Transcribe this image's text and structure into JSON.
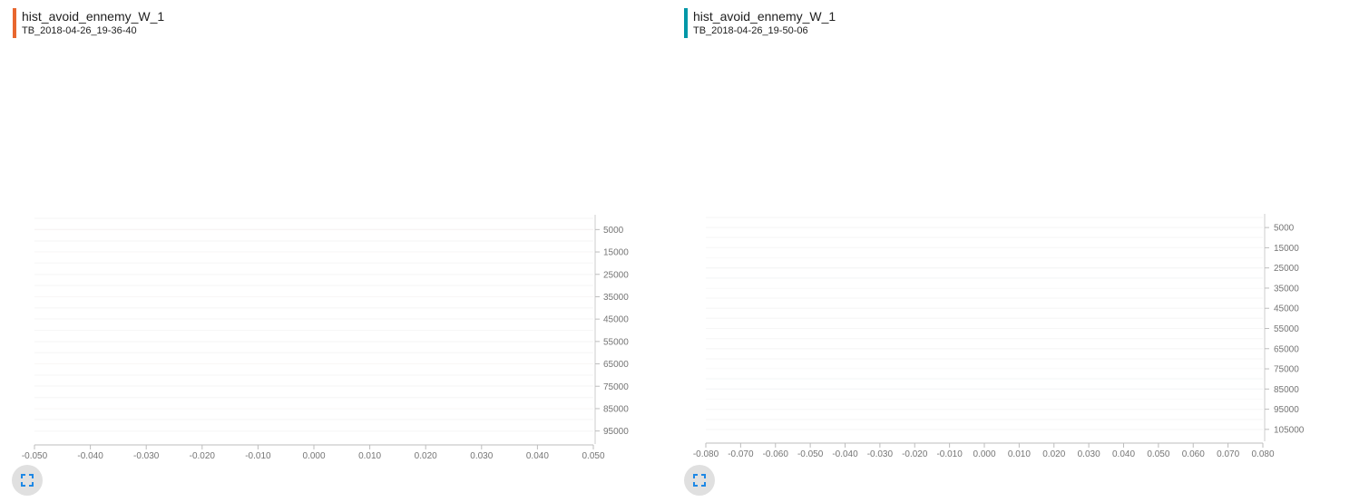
{
  "chart_data": [
    {
      "type": "area",
      "title": "hist_avoid_ennemy_W_1",
      "subtitle": "TB_2018-04-26_19-36-40",
      "accent_color": "#e8672f",
      "top_color": "#bf360c",
      "bottom_color": "#ffa26f",
      "x_ticks": [
        "-0.050",
        "-0.040",
        "-0.030",
        "-0.020",
        "-0.010",
        "0.000",
        "0.010",
        "0.020",
        "0.030",
        "0.040",
        "0.050"
      ],
      "xlim": [
        -0.05,
        0.05
      ],
      "step_labels": [
        "5000",
        "15000",
        "25000",
        "35000",
        "45000",
        "55000",
        "65000",
        "75000",
        "85000",
        "95000"
      ],
      "steplim": [
        0,
        100000
      ],
      "series": [
        {
          "step": 0,
          "range": [
            -0.05,
            0.05
          ],
          "values": [
            0.0,
            0.0,
            0.0,
            0.0,
            0.0,
            0.0,
            0.0,
            0.0,
            0.0,
            0.0,
            0.0
          ]
        },
        {
          "step": 5000,
          "range": [
            -0.05,
            0.05
          ],
          "values": [
            0.0,
            0.0,
            0.0,
            0.0,
            0.0,
            0.0,
            0.0,
            0.0,
            0.0,
            0.0,
            0.0
          ]
        },
        {
          "step": 10000,
          "range": [
            -0.05,
            0.05
          ],
          "values": [
            0.0,
            0.0,
            0.0,
            0.0,
            0.0,
            0.0,
            0.0,
            0.0,
            0.0,
            0.0,
            0.0
          ]
        },
        {
          "step": 15000,
          "range": [
            -0.05,
            0.05
          ],
          "values": [
            0.0,
            0.0,
            0.0,
            0.0,
            0.0,
            0.0,
            0.0,
            0.0,
            0.0,
            0.0,
            0.0
          ]
        },
        {
          "step": 20000,
          "range": [
            -0.05,
            0.05
          ],
          "values": [
            0.0,
            0.0,
            0.0,
            0.0,
            0.0,
            0.0,
            0.0,
            0.0,
            0.0,
            0.0,
            0.0
          ]
        },
        {
          "step": 25000,
          "range": [
            -0.05,
            0.05
          ],
          "values": [
            0.0,
            0.0,
            0.0,
            0.0,
            0.0,
            0.0,
            0.0,
            0.0,
            0.0,
            0.0,
            0.0
          ]
        },
        {
          "step": 30000,
          "range": [
            -0.05,
            0.05
          ],
          "values": [
            0.0,
            0.0,
            0.0,
            0.0,
            0.0,
            0.0,
            0.0,
            0.0,
            0.0,
            0.0,
            0.0
          ]
        },
        {
          "step": 35000,
          "range": [
            -0.05,
            0.05
          ],
          "values": [
            0.0,
            0.0,
            0.0,
            0.0,
            0.0,
            0.0,
            0.0,
            0.0,
            0.0,
            0.0,
            0.0
          ]
        },
        {
          "step": 40000,
          "range": [
            -0.05,
            0.05
          ],
          "values": [
            0.0,
            0.0,
            0.0,
            0.0,
            0.0,
            0.0,
            0.0,
            0.0,
            0.0,
            0.0,
            0.0
          ]
        },
        {
          "step": 45000,
          "range": [
            -0.05,
            0.05
          ],
          "values": [
            0.0,
            0.0,
            0.0,
            0.0,
            0.0,
            0.0,
            0.0,
            0.0,
            0.0,
            0.0,
            0.0
          ]
        },
        {
          "step": 50000,
          "range": [
            -0.05,
            0.05
          ],
          "values": [
            0.0,
            0.0,
            0.0,
            0.0,
            0.0,
            0.0,
            0.0,
            0.0,
            0.0,
            0.0,
            0.0
          ]
        },
        {
          "step": 55000,
          "range": [
            -0.05,
            0.05
          ],
          "values": [
            0.0,
            0.0,
            0.0,
            0.0,
            0.0,
            0.0,
            0.0,
            0.0,
            0.0,
            0.0,
            0.0
          ]
        },
        {
          "step": 60000,
          "range": [
            -0.05,
            0.05
          ],
          "values": [
            0.0,
            0.0,
            0.0,
            0.0,
            0.0,
            0.0,
            0.0,
            0.0,
            0.0,
            0.0,
            0.0
          ]
        },
        {
          "step": 65000,
          "range": [
            -0.05,
            0.05
          ],
          "values": [
            0.0,
            0.0,
            0.0,
            0.0,
            0.0,
            0.0,
            0.0,
            0.0,
            0.0,
            0.0,
            0.0
          ]
        },
        {
          "step": 70000,
          "range": [
            -0.05,
            0.05
          ],
          "values": [
            0.0,
            0.0,
            0.0,
            0.0,
            0.0,
            0.0,
            0.0,
            0.0,
            0.0,
            0.0,
            0.0
          ]
        },
        {
          "step": 75000,
          "range": [
            -0.05,
            0.05
          ],
          "values": [
            0.0,
            0.0,
            0.0,
            0.0,
            0.0,
            0.0,
            0.0,
            0.0,
            0.0,
            0.0,
            0.0
          ]
        },
        {
          "step": 80000,
          "range": [
            -0.05,
            0.05
          ],
          "values": [
            0.0,
            0.0,
            0.0,
            0.0,
            0.0,
            0.0,
            0.0,
            0.0,
            0.0,
            0.0,
            0.0
          ]
        },
        {
          "step": 85000,
          "range": [
            -0.05,
            0.05
          ],
          "values": [
            0.0,
            0.0,
            0.0,
            0.0,
            0.0,
            0.0,
            0.0,
            0.0,
            0.0,
            0.0,
            0.0
          ]
        },
        {
          "step": 90000,
          "range": [
            -0.05,
            0.05
          ],
          "values": [
            0.0,
            0.0,
            0.0,
            0.0,
            0.0,
            0.0,
            0.0,
            0.0,
            0.0,
            0.0,
            0.0
          ]
        },
        {
          "step": 95000,
          "range": [
            -0.05,
            0.05
          ],
          "values": [
            0.0,
            0.0,
            0.0,
            0.0,
            0.0,
            0.0,
            0.0,
            0.0,
            0.0,
            0.0,
            0.0
          ]
        }
      ]
    },
    {
      "type": "area",
      "title": "hist_avoid_ennemy_W_1",
      "subtitle": "TB_2018-04-26_19-50-06",
      "accent_color": "#0097a7",
      "top_color": "#006f80",
      "bottom_color": "#5ee0f5",
      "x_ticks": [
        "-0.080",
        "-0.070",
        "-0.060",
        "-0.050",
        "-0.040",
        "-0.030",
        "-0.020",
        "-0.010",
        "0.000",
        "0.010",
        "0.020",
        "0.030",
        "0.040",
        "0.050",
        "0.060",
        "0.070",
        "0.080"
      ],
      "xlim": [
        -0.08,
        0.08
      ],
      "step_labels": [
        "5000",
        "15000",
        "25000",
        "35000",
        "45000",
        "55000",
        "65000",
        "75000",
        "85000",
        "95000",
        "105000"
      ],
      "steplim": [
        0,
        110000
      ],
      "series": [
        {
          "step": 0,
          "range": [
            -0.08,
            0.08
          ],
          "values": [
            0.0,
            0.0,
            0.0,
            0.0,
            0.0,
            0.0,
            0.0,
            0.0,
            0.0,
            0.0,
            0.0
          ]
        },
        {
          "step": 5000,
          "range": [
            -0.08,
            0.08
          ],
          "values": [
            0.0,
            0.0,
            0.0,
            0.0,
            0.0,
            0.0,
            0.0,
            0.0,
            0.0,
            0.0,
            0.0
          ]
        },
        {
          "step": 10000,
          "range": [
            -0.08,
            0.08
          ],
          "values": [
            0.0,
            0.0,
            0.0,
            0.0,
            0.0,
            0.0,
            0.0,
            0.0,
            0.0,
            0.0,
            0.0
          ]
        },
        {
          "step": 15000,
          "range": [
            -0.08,
            0.08
          ],
          "values": [
            0.0,
            0.0,
            0.0,
            0.0,
            0.0,
            0.0,
            0.0,
            0.0,
            0.0,
            0.0,
            0.0
          ]
        },
        {
          "step": 20000,
          "range": [
            -0.08,
            0.08
          ],
          "values": [
            0.0,
            0.0,
            0.0,
            0.0,
            0.0,
            0.0,
            0.0,
            0.0,
            0.0,
            0.0,
            0.0
          ]
        },
        {
          "step": 25000,
          "range": [
            -0.08,
            0.08
          ],
          "values": [
            0.0,
            0.0,
            0.0,
            0.0,
            0.0,
            0.0,
            0.0,
            0.0,
            0.0,
            0.0,
            0.0
          ]
        },
        {
          "step": 30000,
          "range": [
            -0.08,
            0.08
          ],
          "values": [
            0.0,
            0.0,
            0.0,
            0.0,
            0.0,
            0.0,
            0.0,
            0.0,
            0.0,
            0.0,
            0.0
          ]
        },
        {
          "step": 35000,
          "range": [
            -0.08,
            0.08
          ],
          "values": [
            0.0,
            0.0,
            0.0,
            0.0,
            0.0,
            0.0,
            0.0,
            0.0,
            0.0,
            0.0,
            0.0
          ]
        },
        {
          "step": 40000,
          "range": [
            -0.08,
            0.08
          ],
          "values": [
            0.0,
            0.0,
            0.0,
            0.0,
            0.0,
            0.0,
            0.0,
            0.0,
            0.0,
            0.0,
            0.0
          ]
        },
        {
          "step": 45000,
          "range": [
            -0.08,
            0.08
          ],
          "values": [
            0.0,
            0.0,
            0.0,
            0.0,
            0.0,
            0.0,
            0.0,
            0.0,
            0.0,
            0.0,
            0.0
          ]
        },
        {
          "step": 50000,
          "range": [
            -0.08,
            0.08
          ],
          "values": [
            0.0,
            0.0,
            0.0,
            0.0,
            0.0,
            0.0,
            0.0,
            0.0,
            0.0,
            0.0,
            0.0
          ]
        },
        {
          "step": 55000,
          "range": [
            -0.08,
            0.08
          ],
          "values": [
            0.0,
            0.0,
            0.0,
            0.0,
            0.0,
            0.0,
            0.0,
            0.0,
            0.0,
            0.0,
            0.0
          ]
        },
        {
          "step": 60000,
          "range": [
            -0.08,
            0.08
          ],
          "values": [
            0.0,
            0.0,
            0.0,
            0.0,
            0.0,
            0.0,
            0.0,
            0.0,
            0.0,
            0.0,
            0.0
          ]
        },
        {
          "step": 65000,
          "range": [
            -0.08,
            0.08
          ],
          "values": [
            0.0,
            0.0,
            0.0,
            0.0,
            0.0,
            0.0,
            0.0,
            0.0,
            0.0,
            0.0,
            0.0
          ]
        },
        {
          "step": 70000,
          "range": [
            -0.08,
            0.08
          ],
          "values": [
            0.0,
            0.0,
            0.0,
            0.0,
            0.0,
            0.0,
            0.0,
            0.0,
            0.0,
            0.0,
            0.0
          ]
        },
        {
          "step": 75000,
          "range": [
            -0.08,
            0.08
          ],
          "values": [
            0.0,
            0.0,
            0.0,
            0.0,
            0.0,
            0.0,
            0.0,
            0.0,
            0.0,
            0.0,
            0.0
          ]
        },
        {
          "step": 80000,
          "range": [
            -0.08,
            0.08
          ],
          "values": [
            0.0,
            0.0,
            0.0,
            0.0,
            0.0,
            0.0,
            0.0,
            0.0,
            0.0,
            0.0,
            0.0
          ]
        },
        {
          "step": 85000,
          "range": [
            -0.08,
            0.08
          ],
          "values": [
            0.0,
            0.0,
            0.0,
            0.0,
            0.0,
            0.0,
            0.0,
            0.0,
            0.0,
            0.0,
            0.0
          ]
        },
        {
          "step": 90000,
          "range": [
            -0.08,
            0.08
          ],
          "values": [
            0.0,
            0.0,
            0.0,
            0.0,
            0.0,
            0.0,
            0.0,
            0.0,
            0.0,
            0.0,
            0.0
          ]
        },
        {
          "step": 95000,
          "range": [
            -0.08,
            0.08
          ],
          "values": [
            0.0,
            0.0,
            0.0,
            0.0,
            0.0,
            0.0,
            0.0,
            0.0,
            0.0,
            0.0,
            0.0
          ]
        },
        {
          "step": 100000,
          "range": [
            -0.08,
            0.08
          ],
          "values": [
            0.0,
            0.0,
            0.0,
            0.0,
            0.0,
            0.0,
            0.0,
            0.0,
            0.0,
            0.0,
            0.0
          ]
        },
        {
          "step": 105000,
          "range": [
            -0.08,
            0.08
          ],
          "values": [
            0.0,
            0.0,
            0.0,
            0.0,
            0.0,
            0.0,
            0.0,
            0.0,
            0.0,
            0.0,
            0.0
          ]
        }
      ]
    }
  ],
  "controls": {
    "expand_icon": "expand-icon"
  }
}
